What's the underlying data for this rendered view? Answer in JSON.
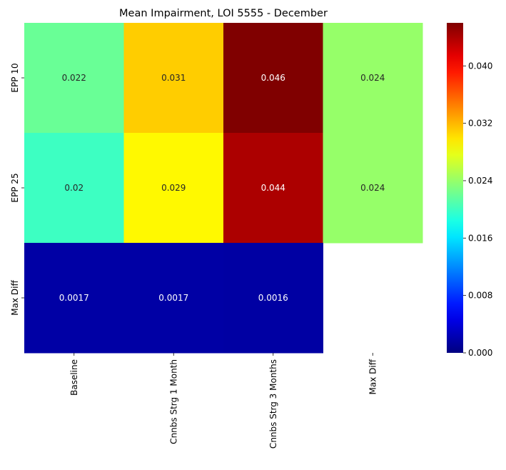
{
  "chart_data": {
    "type": "heatmap",
    "title": "Mean Impairment, LOI 5555 - December",
    "xlabel": "",
    "ylabel": "",
    "x_categories": [
      "Baseline",
      "Cnnbs Strg 1 Month",
      "Cnnbs Strg 3 Months",
      "Max Diff"
    ],
    "y_categories": [
      "EPP 10",
      "EPP 25",
      "Max Diff"
    ],
    "values": [
      [
        0.022,
        0.031,
        0.046,
        0.024
      ],
      [
        0.02,
        0.029,
        0.044,
        0.024
      ],
      [
        0.0017,
        0.0017,
        0.0016,
        null
      ]
    ],
    "cell_labels": [
      [
        "0.022",
        "0.031",
        "0.046",
        "0.024"
      ],
      [
        "0.02",
        "0.029",
        "0.044",
        "0.024"
      ],
      [
        "0.0017",
        "0.0017",
        "0.0016",
        ""
      ]
    ],
    "colormap": "jet",
    "color_range": [
      0,
      0.046
    ],
    "colorbar_ticks": [
      0.0,
      0.008,
      0.016,
      0.024,
      0.032,
      0.04
    ],
    "colorbar_tick_labels": [
      "0.000",
      "0.008",
      "0.016",
      "0.024",
      "0.032",
      "0.040"
    ],
    "missing_cell_color": "#ffffff"
  }
}
